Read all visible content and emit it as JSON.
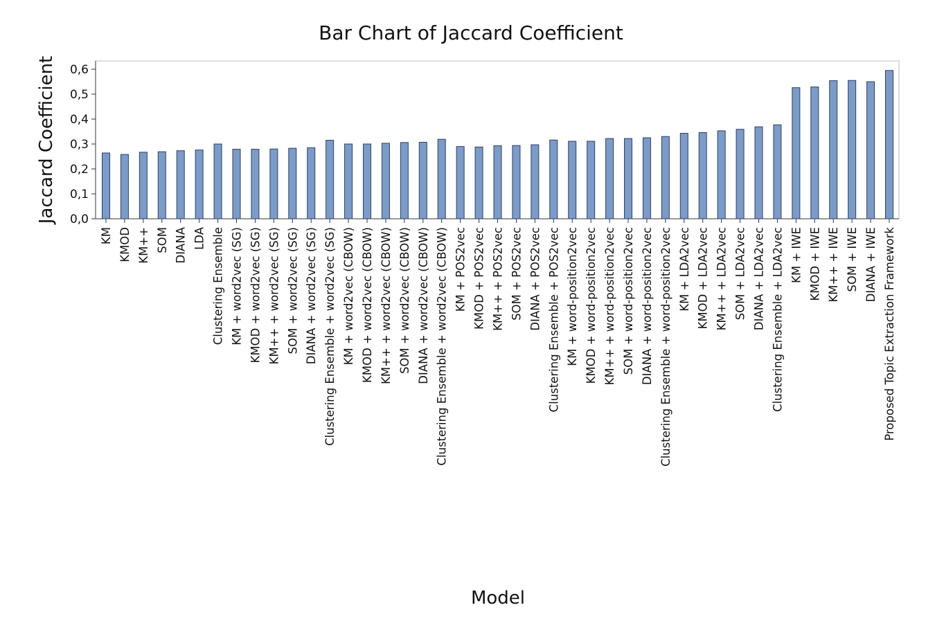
{
  "chart_data": {
    "type": "bar",
    "title": "Bar Chart of Jaccard Coefficient",
    "xlabel": "Model",
    "ylabel": "Jaccard Coefficient",
    "ylim": [
      0,
      0.6
    ],
    "yticks": [
      "0,0",
      "0,1",
      "0,2",
      "0,3",
      "0,4",
      "0,5",
      "0,6"
    ],
    "grid": false,
    "bar_color": "#7b9bc9",
    "bar_edge_color": "#2b3f66",
    "categories": [
      "KM",
      "KMOD",
      "KM++",
      "SOM",
      "DIANA",
      "LDA",
      "Clustering Ensemble",
      "KM + word2vec (SG)",
      "KMOD + word2vec (SG)",
      "KM++ + word2vec (SG)",
      "SOM + word2vec (SG)",
      "DIANA + word2vec (SG)",
      "Clustering Ensemble + word2vec (SG)",
      "KM + word2vec (CBOW)",
      "KMOD + word2vec (CBOW)",
      "KM++ + word2vec (CBOW)",
      "SOM + word2vec (CBOW)",
      "DIANA + word2vec (CBOW)",
      "Clustering Ensemble + word2vec (CBOW)",
      "KM + POS2vec",
      "KMOD + POS2vec",
      "KM++ + POS2vec",
      "SOM + POS2vec",
      "DIANA + POS2vec",
      "Clustering Ensemble + POS2vec",
      "KM + word-position2vec",
      "KMOD + word-position2vec",
      "KM++ + word-position2vec",
      "SOM + word-position2vec",
      "DIANA + word-position2vec",
      "Clustering Ensemble + word-position2vec",
      "KM + LDA2vec",
      "KMOD + LDA2vec",
      "KM++ + LDA2vec",
      "SOM + LDA2vec",
      "DIANA + LDA2vec",
      "Clustering Ensemble + LDA2vec",
      "KM + IWE",
      "KMOD + IWE",
      "KM++ + IWE",
      "SOM + IWE",
      "DIANA + IWE",
      "Proposed Topic Extraction Framework"
    ],
    "values": [
      0.264,
      0.258,
      0.267,
      0.269,
      0.273,
      0.276,
      0.3,
      0.279,
      0.279,
      0.28,
      0.283,
      0.285,
      0.315,
      0.3,
      0.3,
      0.303,
      0.306,
      0.307,
      0.319,
      0.29,
      0.288,
      0.293,
      0.294,
      0.297,
      0.316,
      0.311,
      0.311,
      0.322,
      0.322,
      0.325,
      0.33,
      0.343,
      0.346,
      0.353,
      0.359,
      0.369,
      0.377,
      0.526,
      0.529,
      0.554,
      0.555,
      0.55,
      0.595
    ]
  }
}
